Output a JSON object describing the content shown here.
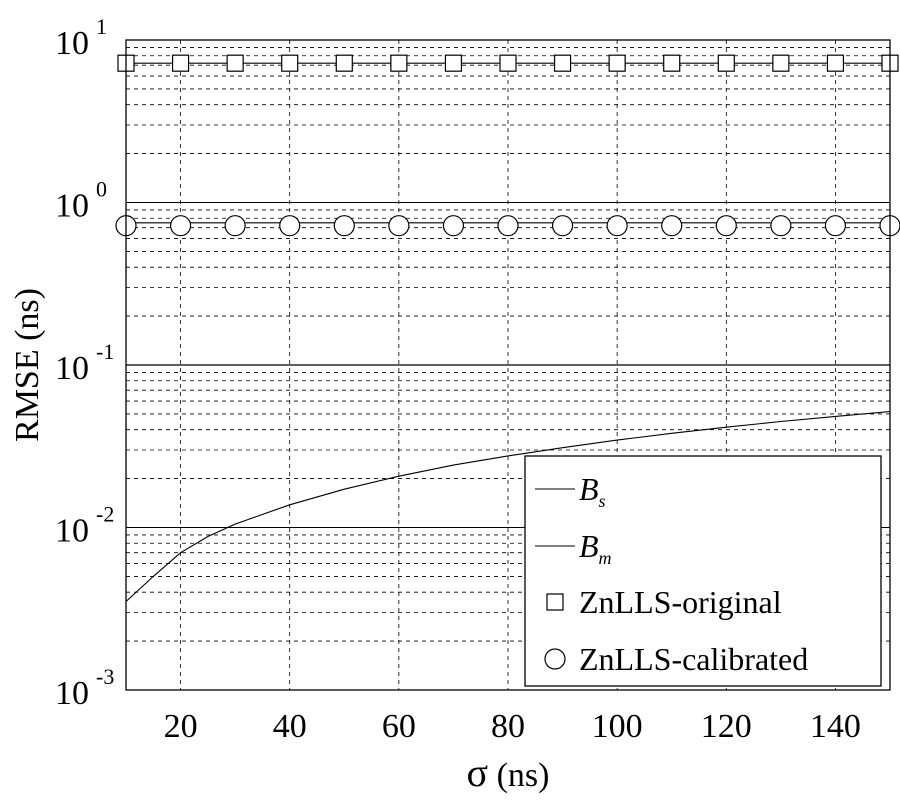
{
  "chart_data": {
    "type": "line",
    "xlabel_symbol": "σ",
    "xlabel_unit": " (ns)",
    "ylabel": "RMSE (ns)",
    "xlim": [
      10,
      150
    ],
    "ylim": [
      0.001,
      10
    ],
    "yscale": "log",
    "grid": true,
    "legend_position": "bottom-right",
    "x_ticks": [
      20,
      40,
      60,
      80,
      100,
      120,
      140
    ],
    "y_ticks": [
      {
        "base": "10",
        "exp": "-3",
        "value": 0.001
      },
      {
        "base": "10",
        "exp": "-2",
        "value": 0.01
      },
      {
        "base": "10",
        "exp": "-1",
        "value": 0.1
      },
      {
        "base": "10",
        "exp": "0",
        "value": 1
      },
      {
        "base": "10",
        "exp": "1",
        "value": 10
      }
    ],
    "series": [
      {
        "name": "B",
        "subscript": "s",
        "style": "line",
        "x": [
          10,
          15,
          20,
          25,
          30,
          40,
          50,
          60,
          70,
          80,
          90,
          100,
          110,
          120,
          130,
          140,
          150
        ],
        "y": [
          0.0035,
          0.005,
          0.007,
          0.0088,
          0.0105,
          0.0138,
          0.0172,
          0.0207,
          0.0242,
          0.0276,
          0.031,
          0.0345,
          0.038,
          0.0414,
          0.0449,
          0.0483,
          0.0517
        ]
      },
      {
        "name": "B",
        "subscript": "m",
        "style": "line",
        "x": [
          10,
          150
        ],
        "y": [
          0.01,
          0.01
        ]
      },
      {
        "name": "ZnLLS-original",
        "style": "square-marker",
        "x": [
          10,
          20,
          30,
          40,
          50,
          60,
          70,
          80,
          90,
          100,
          110,
          120,
          130,
          140,
          150
        ],
        "y": [
          7.2,
          7.2,
          7.2,
          7.2,
          7.2,
          7.2,
          7.2,
          7.2,
          7.2,
          7.2,
          7.2,
          7.2,
          7.2,
          7.2,
          7.2
        ]
      },
      {
        "name": "ZnLLS-calibrated",
        "style": "circle-marker",
        "x": [
          10,
          20,
          30,
          40,
          50,
          60,
          70,
          80,
          90,
          100,
          110,
          120,
          130,
          140,
          150
        ],
        "y": [
          0.72,
          0.72,
          0.72,
          0.72,
          0.72,
          0.72,
          0.72,
          0.72,
          0.72,
          0.72,
          0.72,
          0.72,
          0.72,
          0.72,
          0.72
        ]
      }
    ],
    "reference_lines": [
      {
        "y": 7.2
      },
      {
        "y": 0.75
      },
      {
        "y": 0.1
      }
    ]
  }
}
